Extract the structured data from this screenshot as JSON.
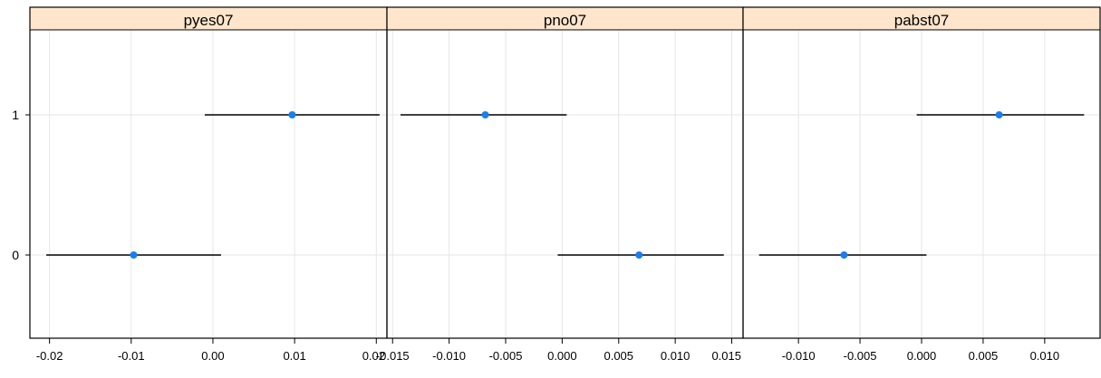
{
  "chart_data": {
    "type": "scatter",
    "layout": "trellis",
    "title": "",
    "xlabel": "",
    "ylabel": "",
    "grid": true,
    "colors": {
      "point": "#1a7df2",
      "strip": "#ffe5cc",
      "grid": "#e6e6e6",
      "errorbar": "#000000"
    },
    "categories": [
      "0",
      "1"
    ],
    "panels": [
      {
        "name": "pyes07",
        "xlim": [
          -0.0224,
          0.0213
        ],
        "xticks": [
          -0.02,
          -0.01,
          0.0,
          0.01,
          0.02
        ],
        "xtick_labels": [
          "-0.02",
          "-0.01",
          "0.00",
          "0.01",
          "0.02"
        ],
        "points": [
          {
            "category": "1",
            "estimate": 0.0097,
            "lower": -0.001,
            "upper": 0.0204
          },
          {
            "category": "0",
            "estimate": -0.0097,
            "lower": -0.0204,
            "upper": 0.001
          }
        ]
      },
      {
        "name": "pno07",
        "xlim": [
          -0.0155,
          0.016
        ],
        "xticks": [
          -0.015,
          -0.01,
          -0.005,
          0.0,
          0.005,
          0.01,
          0.015
        ],
        "xtick_labels": [
          "-0.015",
          "-0.010",
          "-0.005",
          "0.000",
          "0.005",
          "0.010",
          "0.015"
        ],
        "points": [
          {
            "category": "1",
            "estimate": -0.0068,
            "lower": -0.0143,
            "upper": 0.0004
          },
          {
            "category": "0",
            "estimate": 0.0068,
            "lower": -0.0004,
            "upper": 0.0143
          }
        ]
      },
      {
        "name": "pabst07",
        "xlim": [
          -0.0145,
          0.0145
        ],
        "xticks": [
          -0.01,
          -0.005,
          0.0,
          0.005,
          0.01
        ],
        "xtick_labels": [
          "-0.010",
          "-0.005",
          "0.000",
          "0.005",
          "0.010"
        ],
        "points": [
          {
            "category": "1",
            "estimate": 0.0063,
            "lower": -0.0004,
            "upper": 0.0132
          },
          {
            "category": "0",
            "estimate": -0.0063,
            "lower": -0.0132,
            "upper": 0.0004
          }
        ]
      }
    ]
  }
}
